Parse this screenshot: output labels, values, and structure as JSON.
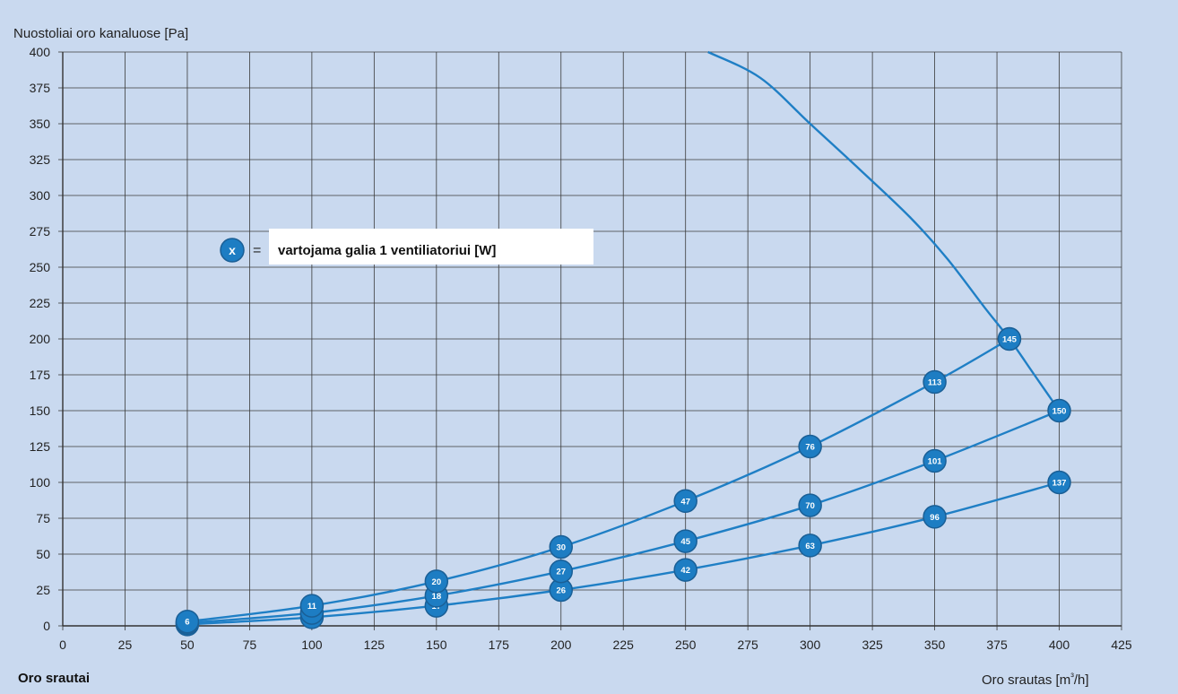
{
  "chart_data": {
    "type": "line",
    "ylabel": "Nuostoliai oro kanaluose [Pa]",
    "xlabel": "Oro srautas [m³/h]",
    "corner_label": "Oro srautai",
    "legend_symbol": "x",
    "legend_equals": "=",
    "legend_text": "vartojama galia 1 ventiliatoriui [W]",
    "xlim": [
      0,
      425
    ],
    "ylim": [
      0,
      400
    ],
    "xticks": [
      "0",
      "25",
      "50",
      "75",
      "100",
      "125",
      "150",
      "175",
      "200",
      "225",
      "250",
      "275",
      "300",
      "325",
      "350",
      "375",
      "400",
      "425"
    ],
    "yticks": [
      "0",
      "25",
      "50",
      "75",
      "100",
      "125",
      "150",
      "175",
      "200",
      "225",
      "250",
      "275",
      "300",
      "325",
      "350",
      "375",
      "400"
    ],
    "grid": true,
    "colors": {
      "line": "#1f7fc5",
      "marker": "#1d7dc3",
      "marker_stroke": "#1a5f96",
      "grid": "#3a3a3a",
      "background": "#c9d9ef"
    },
    "series": [
      {
        "points": [
          {
            "x": 50,
            "y": 3,
            "label": "6"
          },
          {
            "x": 100,
            "y": 14,
            "label": "11"
          },
          {
            "x": 150,
            "y": 31,
            "label": "20"
          },
          {
            "x": 200,
            "y": 55,
            "label": "30"
          },
          {
            "x": 250,
            "y": 87,
            "label": "47"
          },
          {
            "x": 300,
            "y": 125,
            "label": "76"
          },
          {
            "x": 350,
            "y": 170,
            "label": "113"
          },
          {
            "x": 380,
            "y": 200,
            "label": "145"
          }
        ]
      },
      {
        "points": [
          {
            "x": 50,
            "y": 2,
            "label": ""
          },
          {
            "x": 100,
            "y": 9,
            "label": ""
          },
          {
            "x": 150,
            "y": 21,
            "label": "18"
          },
          {
            "x": 200,
            "y": 38,
            "label": "27"
          },
          {
            "x": 250,
            "y": 59,
            "label": "45"
          },
          {
            "x": 300,
            "y": 84,
            "label": "70"
          },
          {
            "x": 350,
            "y": 115,
            "label": "101"
          },
          {
            "x": 400,
            "y": 150,
            "label": "150"
          }
        ]
      },
      {
        "points": [
          {
            "x": 50,
            "y": 1,
            "label": ""
          },
          {
            "x": 100,
            "y": 6,
            "label": ""
          },
          {
            "x": 150,
            "y": 14,
            "label": "17"
          },
          {
            "x": 200,
            "y": 25,
            "label": "26"
          },
          {
            "x": 250,
            "y": 39,
            "label": "42"
          },
          {
            "x": 300,
            "y": 56,
            "label": "63"
          },
          {
            "x": 350,
            "y": 76,
            "label": "96"
          },
          {
            "x": 400,
            "y": 100,
            "label": "137"
          }
        ]
      }
    ],
    "limit_curve": {
      "points": [
        {
          "x": 259,
          "y": 400
        },
        {
          "x": 280,
          "y": 382
        },
        {
          "x": 300,
          "y": 350
        },
        {
          "x": 320,
          "y": 318
        },
        {
          "x": 340,
          "y": 285
        },
        {
          "x": 355,
          "y": 256
        },
        {
          "x": 370,
          "y": 222
        },
        {
          "x": 380,
          "y": 200
        },
        {
          "x": 390,
          "y": 175
        },
        {
          "x": 400,
          "y": 150
        }
      ]
    }
  }
}
